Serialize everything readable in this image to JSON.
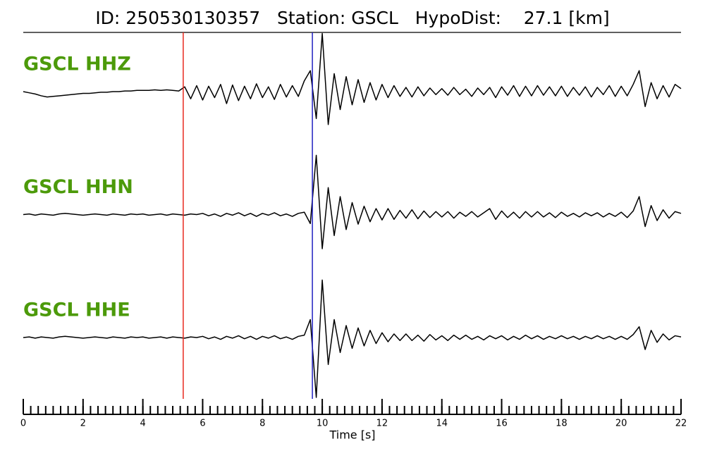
{
  "chart_data": {
    "type": "seismogram",
    "title": "ID: 250530130357   Station: GSCL   HypoDist:    27.1 [km]",
    "xlabel": "Time [s]",
    "xlim": [
      0,
      22
    ],
    "xticks": [
      0,
      2,
      4,
      6,
      8,
      10,
      12,
      14,
      16,
      18,
      20,
      22
    ],
    "xminor": 0.25,
    "picks": [
      {
        "t": 5.35,
        "color": "#e8281e"
      },
      {
        "t": 9.67,
        "color": "#2020c0"
      }
    ],
    "x": [
      0,
      0.2,
      0.4,
      0.6,
      0.8,
      1,
      1.2,
      1.4,
      1.6,
      1.8,
      2,
      2.2,
      2.4,
      2.6,
      2.8,
      3,
      3.2,
      3.4,
      3.6,
      3.8,
      4,
      4.2,
      4.4,
      4.6,
      4.8,
      5,
      5.2,
      5.4,
      5.6,
      5.8,
      6,
      6.2,
      6.4,
      6.6,
      6.8,
      7,
      7.2,
      7.4,
      7.6,
      7.8,
      8,
      8.2,
      8.4,
      8.6,
      8.8,
      9,
      9.2,
      9.4,
      9.6,
      9.8,
      10,
      10.2,
      10.4,
      10.6,
      10.8,
      11,
      11.2,
      11.4,
      11.6,
      11.8,
      12,
      12.2,
      12.4,
      12.6,
      12.8,
      13,
      13.2,
      13.4,
      13.6,
      13.8,
      14,
      14.2,
      14.4,
      14.6,
      14.8,
      15,
      15.2,
      15.4,
      15.6,
      15.8,
      16,
      16.2,
      16.4,
      16.6,
      16.8,
      17,
      17.2,
      17.4,
      17.6,
      17.8,
      18,
      18.2,
      18.4,
      18.6,
      18.8,
      19,
      19.2,
      19.4,
      19.6,
      19.8,
      20,
      20.2,
      20.4,
      20.6,
      20.8,
      21,
      21.2,
      21.4,
      21.6,
      21.8,
      22
    ],
    "series": [
      {
        "name": "GSCL HHZ",
        "color": "#000000",
        "values": [
          0,
          -0.02,
          -0.04,
          -0.07,
          -0.09,
          -0.08,
          -0.07,
          -0.06,
          -0.05,
          -0.04,
          -0.03,
          -0.03,
          -0.02,
          -0.01,
          -0.01,
          0,
          0,
          0.01,
          0.01,
          0.02,
          0.02,
          0.02,
          0.03,
          0.02,
          0.03,
          0.02,
          0.01,
          0.08,
          -0.12,
          0.1,
          -0.14,
          0.09,
          -0.1,
          0.12,
          -0.2,
          0.11,
          -0.15,
          0.09,
          -0.12,
          0.13,
          -0.1,
          0.08,
          -0.13,
          0.12,
          -0.09,
          0.1,
          -0.08,
          0.18,
          0.35,
          -0.45,
          0.97,
          -0.55,
          0.3,
          -0.3,
          0.25,
          -0.22,
          0.2,
          -0.18,
          0.15,
          -0.14,
          0.12,
          -0.1,
          0.1,
          -0.08,
          0.07,
          -0.09,
          0.08,
          -0.07,
          0.06,
          -0.05,
          0.05,
          -0.06,
          0.07,
          -0.05,
          0.04,
          -0.08,
          0.06,
          -0.05,
          0.07,
          -0.1,
          0.08,
          -0.06,
          0.1,
          -0.08,
          0.09,
          -0.07,
          0.1,
          -0.06,
          0.08,
          -0.07,
          0.09,
          -0.08,
          0.07,
          -0.06,
          0.08,
          -0.09,
          0.07,
          -0.05,
          0.1,
          -0.08,
          0.09,
          -0.07,
          0.12,
          0.35,
          -0.25,
          0.15,
          -0.12,
          0.1,
          -0.09,
          0.12,
          0.05
        ]
      },
      {
        "name": "GSCL HHN",
        "color": "#000000",
        "values": [
          0,
          0.01,
          -0.01,
          0.01,
          0,
          -0.01,
          0.01,
          0.02,
          0.01,
          0,
          -0.01,
          0,
          0.01,
          0,
          -0.01,
          0.01,
          0,
          -0.01,
          0.01,
          0,
          0.01,
          -0.01,
          0,
          0.01,
          -0.01,
          0.01,
          0,
          -0.01,
          0.01,
          0,
          0.02,
          -0.02,
          0.01,
          -0.03,
          0.02,
          -0.01,
          0.03,
          -0.02,
          0.02,
          -0.03,
          0.02,
          -0.01,
          0.03,
          -0.02,
          0.01,
          -0.03,
          0.02,
          0.04,
          -0.15,
          0.99,
          -0.57,
          0.45,
          -0.35,
          0.3,
          -0.25,
          0.2,
          -0.16,
          0.14,
          -0.12,
          0.1,
          -0.09,
          0.1,
          -0.08,
          0.07,
          -0.06,
          0.08,
          -0.07,
          0.06,
          -0.05,
          0.05,
          -0.04,
          0.05,
          -0.06,
          0.04,
          -0.03,
          0.05,
          -0.04,
          0.03,
          0.1,
          -0.08,
          0.06,
          -0.05,
          0.04,
          -0.06,
          0.05,
          -0.04,
          0.05,
          -0.04,
          0.03,
          -0.05,
          0.04,
          -0.03,
          0.02,
          -0.04,
          0.03,
          -0.02,
          0.03,
          -0.04,
          0.02,
          -0.03,
          0.04,
          -0.05,
          0.06,
          0.3,
          -0.2,
          0.15,
          -0.1,
          0.08,
          -0.06,
          0.05,
          0.02
        ]
      },
      {
        "name": "GSCL HHE",
        "color": "#000000",
        "values": [
          0,
          0.01,
          -0.01,
          0.01,
          0,
          -0.01,
          0.01,
          0.02,
          0.01,
          0,
          -0.01,
          0,
          0.01,
          0,
          -0.01,
          0.01,
          0,
          -0.01,
          0.01,
          0,
          0.01,
          -0.01,
          0,
          0.01,
          -0.01,
          0.01,
          0,
          -0.01,
          0.01,
          0,
          0.02,
          -0.02,
          0.01,
          -0.03,
          0.02,
          -0.01,
          0.03,
          -0.02,
          0.02,
          -0.03,
          0.02,
          -0.01,
          0.03,
          -0.02,
          0.01,
          -0.03,
          0.02,
          0.04,
          0.3,
          -1,
          0.96,
          -0.45,
          0.3,
          -0.25,
          0.2,
          -0.18,
          0.16,
          -0.14,
          0.12,
          -0.1,
          0.08,
          -0.07,
          0.06,
          -0.05,
          0.06,
          -0.05,
          0.04,
          -0.06,
          0.05,
          -0.04,
          0.03,
          -0.05,
          0.04,
          -0.03,
          0.04,
          -0.03,
          0.02,
          -0.04,
          0.03,
          -0.02,
          0.03,
          -0.04,
          0.02,
          -0.03,
          0.04,
          -0.02,
          0.03,
          -0.03,
          0.02,
          -0.02,
          0.03,
          -0.02,
          0.02,
          -0.03,
          0.02,
          -0.02,
          0.03,
          -0.02,
          0.02,
          -0.03,
          0.02,
          -0.03,
          0.05,
          0.18,
          -0.2,
          0.12,
          -0.08,
          0.06,
          -0.04,
          0.03,
          0.01
        ]
      }
    ]
  }
}
